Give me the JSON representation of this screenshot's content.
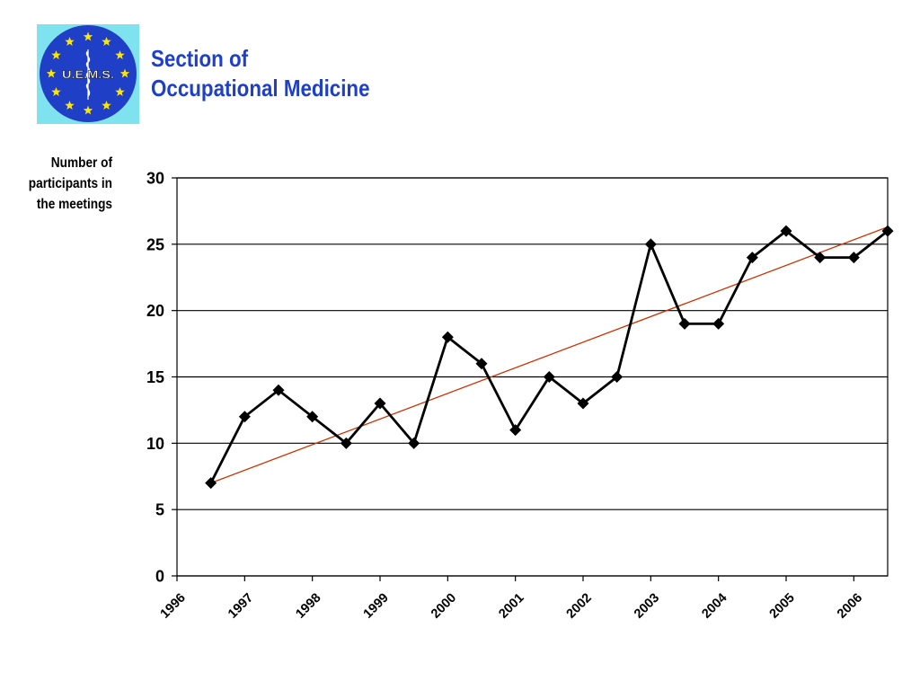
{
  "header": {
    "title_line1": "Section of",
    "title_line2": "Occupational Medicine",
    "title_color": "#1d3fc9"
  },
  "logo": {
    "text": "U.E.M.S.",
    "background": "#7fe3ef",
    "disc_color": "#1f3fc6",
    "star_color": "#ffe600"
  },
  "y_axis_label": {
    "line1": "Number of",
    "line2": "participants in",
    "line3": "the meetings"
  },
  "chart_data": {
    "type": "line",
    "title": "",
    "xlabel": "",
    "ylabel": "Number of participants in the meetings",
    "x_tick_labels": [
      "1996",
      "1997",
      "1998",
      "1999",
      "2000",
      "2001",
      "2002",
      "2003",
      "2004",
      "2005",
      "2006"
    ],
    "y_tick_labels": [
      "0",
      "5",
      "10",
      "15",
      "20",
      "25",
      "30"
    ],
    "ylim": [
      0,
      30
    ],
    "xlim": [
      1996,
      2006.5
    ],
    "grid": "horizontal",
    "legend": "none",
    "series": [
      {
        "color": "#000000",
        "marker": "diamond",
        "x": [
          1996.5,
          1997,
          1997.5,
          1998,
          1998.5,
          1999,
          1999.5,
          2000,
          2000.5,
          2001,
          2001.5,
          2002,
          2002.5,
          2003,
          2003.5,
          2004,
          2004.5,
          2005,
          2005.5,
          2006,
          2006.5
        ],
        "values": [
          7,
          12,
          14,
          12,
          10,
          13,
          10,
          18,
          16,
          11,
          15,
          13,
          15,
          25,
          19,
          19,
          24,
          26,
          24,
          24,
          26
        ]
      }
    ],
    "trendline": {
      "type": "linear",
      "color": "#cc3300",
      "start": [
        1996.5,
        7
      ],
      "end": [
        2006.5,
        26.3
      ]
    }
  }
}
